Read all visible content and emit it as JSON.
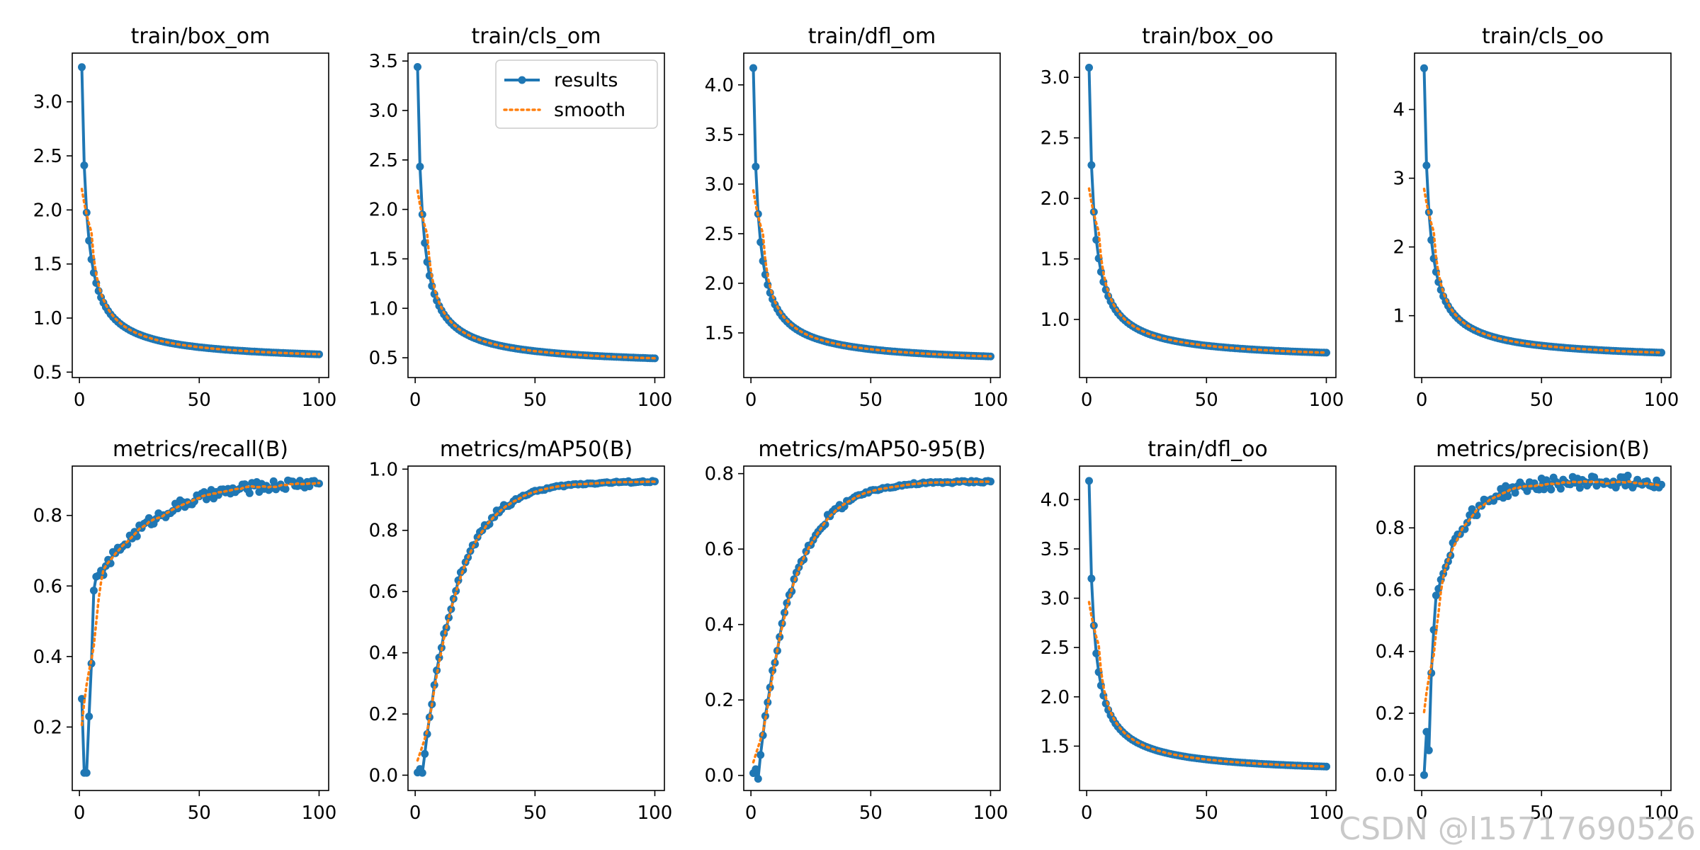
{
  "watermark": "CSDN @l15717690526",
  "colors": {
    "results": "#1f77b4",
    "smooth": "#ff7f0e",
    "axis": "#000000",
    "text": "#000000"
  },
  "legend": {
    "results_label": "results",
    "smooth_label": "smooth",
    "placement": "top-right",
    "panel": 1
  },
  "chart_data": [
    {
      "type": "line",
      "title": "train/box_om",
      "xlim": [
        -3,
        104
      ],
      "ylim": [
        0.45,
        3.45
      ],
      "xticks": [
        0,
        50,
        100
      ],
      "yticks": [
        0.5,
        1.0,
        1.5,
        2.0,
        2.5,
        3.0
      ],
      "ytick_labels": [
        "0.5",
        "1.0",
        "1.5",
        "2.0",
        "2.5",
        "3.0"
      ],
      "curve": "decay",
      "y_start": 3.32,
      "y_end": 0.58,
      "points": 100,
      "series": [
        {
          "name": "results"
        },
        {
          "name": "smooth"
        }
      ]
    },
    {
      "type": "line",
      "title": "train/cls_om",
      "xlim": [
        -3,
        104
      ],
      "ylim": [
        0.3,
        3.58
      ],
      "xticks": [
        0,
        50,
        100
      ],
      "yticks": [
        0.5,
        1.0,
        1.5,
        2.0,
        2.5,
        3.0,
        3.5
      ],
      "ytick_labels": [
        "0.5",
        "1.0",
        "1.5",
        "2.0",
        "2.5",
        "3.0",
        "3.5"
      ],
      "curve": "decay",
      "y_start": 3.44,
      "y_end": 0.4,
      "points": 100,
      "series": [
        {
          "name": "results"
        },
        {
          "name": "smooth"
        }
      ]
    },
    {
      "type": "line",
      "title": "train/dfl_om",
      "xlim": [
        -3,
        104
      ],
      "ylim": [
        1.05,
        4.32
      ],
      "xticks": [
        0,
        50,
        100
      ],
      "yticks": [
        1.5,
        2.0,
        2.5,
        3.0,
        3.5,
        4.0
      ],
      "ytick_labels": [
        "1.5",
        "2.0",
        "2.5",
        "3.0",
        "3.5",
        "4.0"
      ],
      "curve": "decay",
      "y_start": 4.17,
      "y_end": 1.17,
      "points": 100,
      "series": [
        {
          "name": "results"
        },
        {
          "name": "smooth"
        }
      ]
    },
    {
      "type": "line",
      "title": "train/box_oo",
      "xlim": [
        -3,
        104
      ],
      "ylim": [
        0.52,
        3.2
      ],
      "xticks": [
        0,
        50,
        100
      ],
      "yticks": [
        1.0,
        1.5,
        2.0,
        2.5,
        3.0
      ],
      "ytick_labels": [
        "1.0",
        "1.5",
        "2.0",
        "2.5",
        "3.0"
      ],
      "curve": "decay",
      "y_start": 3.08,
      "y_end": 0.65,
      "points": 100,
      "series": [
        {
          "name": "results"
        },
        {
          "name": "smooth"
        }
      ]
    },
    {
      "type": "line",
      "title": "train/cls_oo",
      "xlim": [
        -3,
        104
      ],
      "ylim": [
        0.1,
        4.82
      ],
      "xticks": [
        0,
        50,
        100
      ],
      "yticks": [
        1,
        2,
        3,
        4
      ],
      "ytick_labels": [
        "1",
        "2",
        "3",
        "4"
      ],
      "curve": "decay",
      "y_start": 4.6,
      "y_end": 0.33,
      "points": 100,
      "series": [
        {
          "name": "results"
        },
        {
          "name": "smooth"
        }
      ]
    },
    {
      "type": "line",
      "title": "metrics/recall(B)",
      "xlim": [
        -3,
        104
      ],
      "ylim": [
        0.02,
        0.94
      ],
      "xticks": [
        0,
        50,
        100
      ],
      "yticks": [
        0.2,
        0.4,
        0.6,
        0.8
      ],
      "ytick_labels": [
        "0.2",
        "0.4",
        "0.6",
        "0.8"
      ],
      "curve": "recall",
      "points": 100,
      "series": [
        {
          "name": "results"
        },
        {
          "name": "smooth"
        }
      ]
    },
    {
      "type": "line",
      "title": "metrics/mAP50(B)",
      "xlim": [
        -3,
        104
      ],
      "ylim": [
        -0.05,
        1.01
      ],
      "xticks": [
        0,
        50,
        100
      ],
      "yticks": [
        0.0,
        0.2,
        0.4,
        0.6,
        0.8,
        1.0
      ],
      "ytick_labels": [
        "0.0",
        "0.2",
        "0.4",
        "0.6",
        "0.8",
        "1.0"
      ],
      "curve": "growth",
      "y_start": 0.0,
      "y_end": 0.96,
      "points": 100,
      "series": [
        {
          "name": "results"
        },
        {
          "name": "smooth"
        }
      ]
    },
    {
      "type": "line",
      "title": "metrics/mAP50-95(B)",
      "xlim": [
        -3,
        104
      ],
      "ylim": [
        -0.04,
        0.82
      ],
      "xticks": [
        0,
        50,
        100
      ],
      "yticks": [
        0.0,
        0.2,
        0.4,
        0.6,
        0.8
      ],
      "ytick_labels": [
        "0.0",
        "0.2",
        "0.4",
        "0.6",
        "0.8"
      ],
      "curve": "growth",
      "y_start": 0.0,
      "y_end": 0.78,
      "points": 100,
      "series": [
        {
          "name": "results"
        },
        {
          "name": "smooth"
        }
      ]
    },
    {
      "type": "line",
      "title": "train/dfl_oo",
      "xlim": [
        -3,
        104
      ],
      "ylim": [
        1.05,
        4.34
      ],
      "xticks": [
        0,
        50,
        100
      ],
      "yticks": [
        1.5,
        2.0,
        2.5,
        3.0,
        3.5,
        4.0
      ],
      "ytick_labels": [
        "1.5",
        "2.0",
        "2.5",
        "3.0",
        "3.5",
        "4.0"
      ],
      "curve": "decay",
      "y_start": 4.19,
      "y_end": 1.2,
      "points": 100,
      "series": [
        {
          "name": "results"
        },
        {
          "name": "smooth"
        }
      ]
    },
    {
      "type": "line",
      "title": "metrics/precision(B)",
      "xlim": [
        -3,
        104
      ],
      "ylim": [
        -0.05,
        1.0
      ],
      "xticks": [
        0,
        50,
        100
      ],
      "yticks": [
        0.0,
        0.2,
        0.4,
        0.6,
        0.8
      ],
      "ytick_labels": [
        "0.0",
        "0.2",
        "0.4",
        "0.6",
        "0.8"
      ],
      "curve": "precision",
      "points": 100,
      "series": [
        {
          "name": "results"
        },
        {
          "name": "smooth"
        }
      ]
    }
  ]
}
